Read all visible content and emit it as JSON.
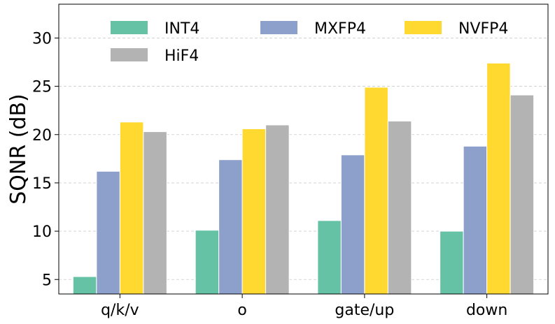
{
  "chart_data": {
    "type": "bar",
    "title": "",
    "xlabel": "",
    "ylabel": "SQNR (dB)",
    "ylim": [
      3.5,
      33.5
    ],
    "yticks": [
      5,
      10,
      15,
      20,
      25,
      30
    ],
    "grid": "horizontal dashed",
    "legend": {
      "placement": "top",
      "columns": 3
    },
    "categories": [
      "q/k/v",
      "o",
      "gate/up",
      "down"
    ],
    "series": [
      {
        "name": "INT4",
        "color": "#66c2a5",
        "values": [
          5.3,
          10.1,
          11.1,
          10.0
        ]
      },
      {
        "name": "MXFP4",
        "color": "#8da0cb",
        "values": [
          16.2,
          17.4,
          17.9,
          18.8
        ]
      },
      {
        "name": "NVFP4",
        "color": "#ffd92f",
        "values": [
          21.3,
          20.6,
          24.9,
          27.4
        ]
      },
      {
        "name": "HiF4",
        "color": "#b3b3b3",
        "values": [
          20.3,
          21.0,
          21.4,
          24.1
        ]
      }
    ]
  }
}
